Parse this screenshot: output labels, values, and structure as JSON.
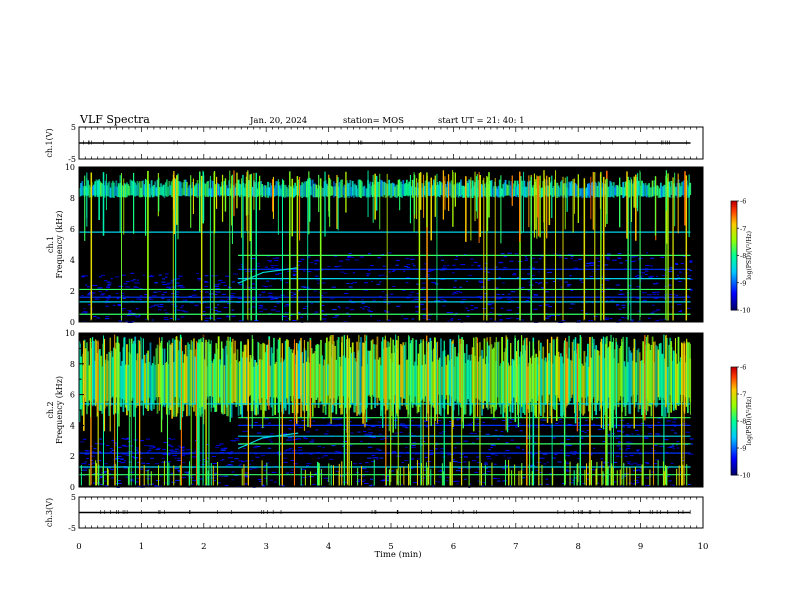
{
  "header": {
    "title": "VLF Spectra",
    "date": "Jan. 20, 2024",
    "station": "station= MOS",
    "start": "start UT = 21: 40: 1"
  },
  "chart_data": [
    {
      "type": "line",
      "panel": "ch1-waveform",
      "ylabel": "ch.1(V)",
      "ylim": [
        -5,
        5
      ],
      "yticks": [
        "5",
        "-5"
      ],
      "x": [
        0,
        9.8
      ],
      "values": [
        0,
        0
      ]
    },
    {
      "type": "heatmap",
      "panel": "ch1-spectrogram",
      "ylabel": "ch.1\nFrequency (kHz)",
      "ylim": [
        0,
        10
      ],
      "yticks": [
        "0",
        "2",
        "4",
        "6",
        "8",
        "10"
      ],
      "xlim": [
        0,
        10
      ],
      "data_end_min": 9.8,
      "colorbar": {
        "label": "log(PSD)(V²/Hz)",
        "min": -10,
        "max": -6,
        "ticks": [
          "-6",
          "-7",
          "-8",
          "-9",
          "-10"
        ]
      },
      "features": {
        "band_khz": [
          8.0,
          9.2
        ],
        "step_time_min": 2.55,
        "tones_khz": [
          0.5,
          1.3,
          1.6,
          2.1,
          2.8,
          3.4,
          4.3,
          5.8
        ]
      }
    },
    {
      "type": "heatmap",
      "panel": "ch2-spectrogram",
      "ylabel": "ch.2\nFrequency (kHz)",
      "ylim": [
        0,
        10
      ],
      "yticks": [
        "0",
        "2",
        "4",
        "6",
        "8",
        "10"
      ],
      "xlim": [
        0,
        10
      ],
      "data_end_min": 9.8,
      "colorbar": {
        "label": "log(PSD)(V²/Hz)",
        "min": -10,
        "max": -6,
        "ticks": [
          "-6",
          "-7",
          "-8",
          "-9",
          "-10"
        ]
      },
      "features": {
        "band_khz": [
          4.5,
          9.8
        ],
        "step_time_min": 2.55,
        "tones_khz": [
          0.8,
          1.3,
          2.2,
          2.8,
          3.3,
          4.0,
          4.5,
          5.4
        ]
      }
    },
    {
      "type": "line",
      "panel": "ch3-waveform",
      "ylabel": "ch.3(V)",
      "ylim": [
        -5,
        5
      ],
      "yticks": [
        "5",
        "-5"
      ],
      "x": [
        0,
        9.8
      ],
      "values": [
        0,
        0
      ]
    }
  ],
  "xaxis": {
    "label": "Time (min)",
    "ticks": [
      "0",
      "1",
      "2",
      "3",
      "4",
      "5",
      "6",
      "7",
      "8",
      "9",
      "10"
    ]
  },
  "colors": {
    "axis": "#000000",
    "background": "#000000"
  }
}
